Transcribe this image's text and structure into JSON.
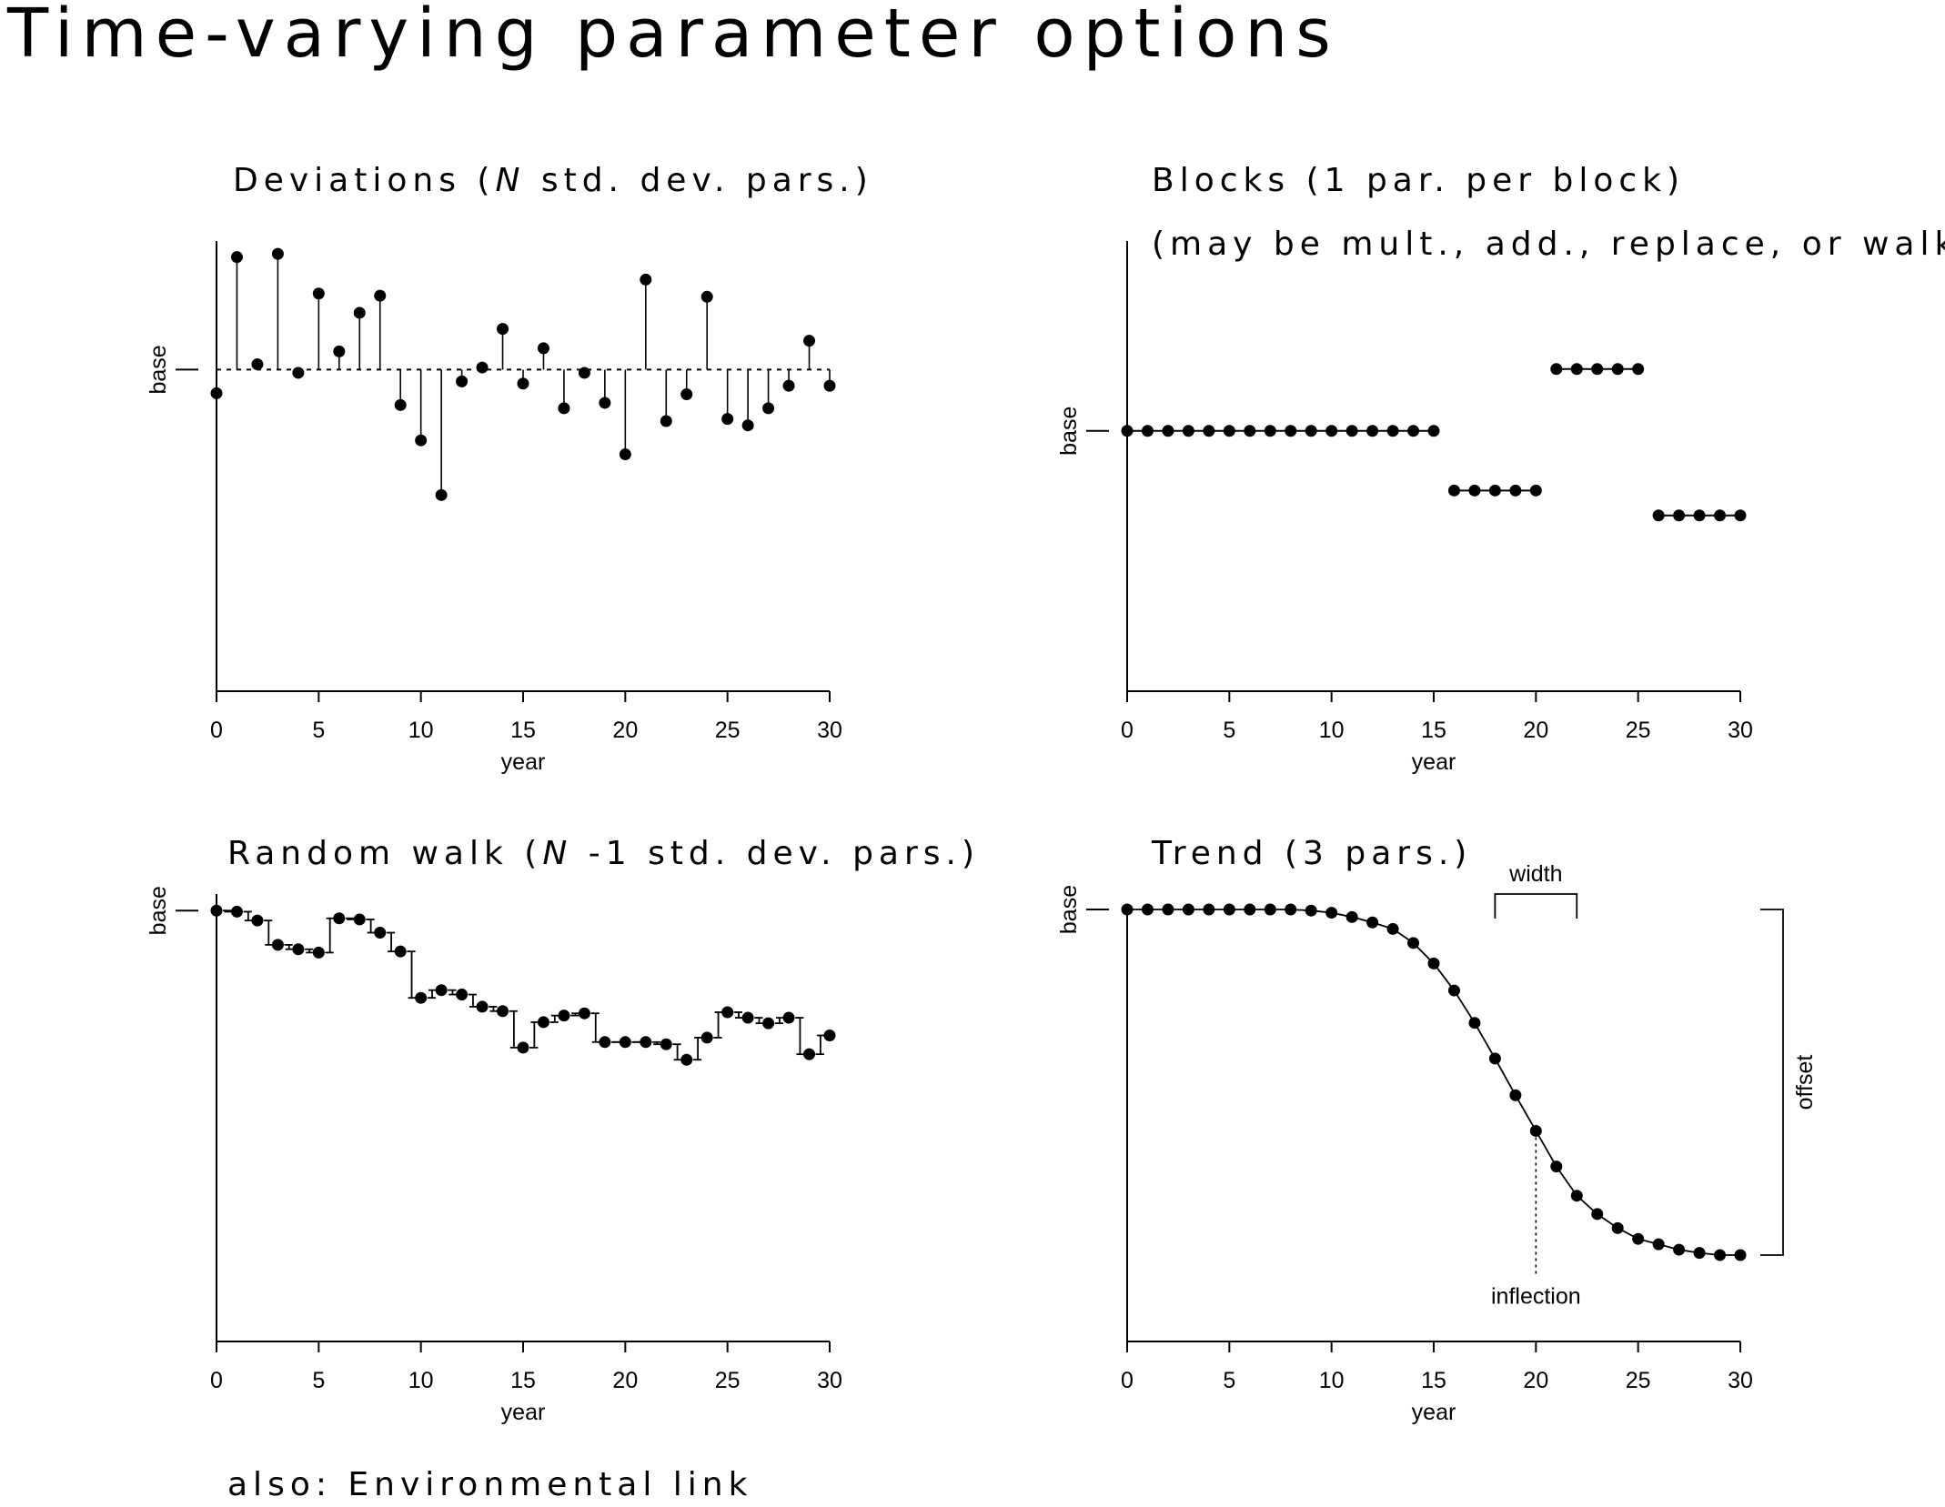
{
  "page_title": "Time-varying parameter options",
  "footer_note": "also: Environmental link",
  "colors": {
    "ink": "#000000",
    "background": "#ffffff"
  },
  "chart_data": [
    {
      "id": "deviations",
      "type": "scatter",
      "title_pre": "Deviations (",
      "title_italic": "N",
      "title_post": " std. dev. pars.)",
      "title_line2": "",
      "xlabel": "year",
      "ylabel": "base",
      "xlim": [
        0,
        30
      ],
      "ylim": [
        -3.0,
        1.2
      ],
      "xticks": [
        0,
        5,
        10,
        15,
        20,
        25,
        30
      ],
      "base": 0,
      "style": "stems-from-base",
      "x": [
        0,
        1,
        2,
        3,
        4,
        5,
        6,
        7,
        8,
        9,
        10,
        11,
        12,
        13,
        14,
        15,
        16,
        17,
        18,
        19,
        20,
        21,
        22,
        23,
        24,
        25,
        26,
        27,
        28,
        29,
        30
      ],
      "y": [
        -0.22,
        1.05,
        0.05,
        1.08,
        -0.03,
        0.71,
        0.17,
        0.53,
        0.69,
        -0.33,
        -0.66,
        -1.17,
        -0.11,
        0.02,
        0.38,
        -0.13,
        0.2,
        -0.36,
        -0.03,
        -0.31,
        -0.79,
        0.84,
        -0.48,
        -0.23,
        0.68,
        -0.46,
        -0.52,
        -0.36,
        -0.15,
        0.27,
        -0.15
      ]
    },
    {
      "id": "blocks",
      "type": "scatter",
      "title_pre": "Blocks (1 par. per block)",
      "title_italic": "",
      "title_post": "",
      "title_line2": "(may be mult., add., replace, or walk)",
      "xlabel": "year",
      "ylabel": "base",
      "xlim": [
        0,
        30
      ],
      "ylim": [
        -2.4,
        1.75
      ],
      "xticks": [
        0,
        5,
        10,
        15,
        20,
        25,
        30
      ],
      "base": 0,
      "style": "block-lines",
      "blocks": [
        {
          "x_start": 0,
          "x_end": 15,
          "value": 0.0
        },
        {
          "x_start": 16,
          "x_end": 20,
          "value": -0.55
        },
        {
          "x_start": 21,
          "x_end": 25,
          "value": 0.57
        },
        {
          "x_start": 26,
          "x_end": 30,
          "value": -0.78
        }
      ]
    },
    {
      "id": "random_walk",
      "type": "line",
      "title_pre": "Random walk (",
      "title_italic": "N",
      "title_post": " -1 std. dev. pars.)",
      "title_line2": "",
      "xlabel": "year",
      "ylabel": "base",
      "xlim": [
        0,
        30
      ],
      "ylim": [
        -3.9,
        0.15
      ],
      "xticks": [
        0,
        5,
        10,
        15,
        20,
        25,
        30
      ],
      "base": 0,
      "style": "step-walk",
      "x": [
        0,
        1,
        2,
        3,
        4,
        5,
        6,
        7,
        8,
        9,
        10,
        11,
        12,
        13,
        14,
        15,
        16,
        17,
        18,
        19,
        20,
        21,
        22,
        23,
        24,
        25,
        26,
        27,
        28,
        29,
        30
      ],
      "y": [
        0.0,
        -0.01,
        -0.09,
        -0.31,
        -0.35,
        -0.38,
        -0.07,
        -0.08,
        -0.2,
        -0.37,
        -0.79,
        -0.72,
        -0.76,
        -0.87,
        -0.91,
        -1.24,
        -1.01,
        -0.95,
        -0.93,
        -1.19,
        -1.19,
        -1.19,
        -1.21,
        -1.35,
        -1.15,
        -0.92,
        -0.97,
        -1.02,
        -0.97,
        -1.3,
        -1.13
      ]
    },
    {
      "id": "trend",
      "type": "line",
      "title_pre": "Trend (3 pars.)",
      "title_italic": "",
      "title_post": "",
      "title_line2": "",
      "xlabel": "year",
      "ylabel": "base",
      "xlim": [
        0,
        30
      ],
      "ylim": [
        -4.0,
        0.0
      ],
      "xticks": [
        0,
        5,
        10,
        15,
        20,
        25,
        30
      ],
      "base": 0,
      "style": "logistic-trend",
      "x": [
        0,
        1,
        2,
        3,
        4,
        5,
        6,
        7,
        8,
        9,
        10,
        11,
        12,
        13,
        14,
        15,
        16,
        17,
        18,
        19,
        20,
        21,
        22,
        23,
        24,
        25,
        26,
        27,
        28,
        29,
        30
      ],
      "y": [
        0,
        0,
        0,
        0,
        0,
        0,
        0,
        0,
        0,
        -0.01,
        -0.03,
        -0.07,
        -0.12,
        -0.18,
        -0.31,
        -0.5,
        -0.75,
        -1.05,
        -1.38,
        -1.72,
        -2.05,
        -2.38,
        -2.65,
        -2.82,
        -2.95,
        -3.05,
        -3.1,
        -3.15,
        -3.18,
        -3.2,
        -3.2
      ],
      "annotations": {
        "width_label": "width",
        "width_range": [
          18,
          22
        ],
        "inflection_label": "inflection",
        "inflection_x": 20,
        "offset_label": "offset",
        "offset_range": [
          0,
          -3.2
        ]
      }
    }
  ]
}
